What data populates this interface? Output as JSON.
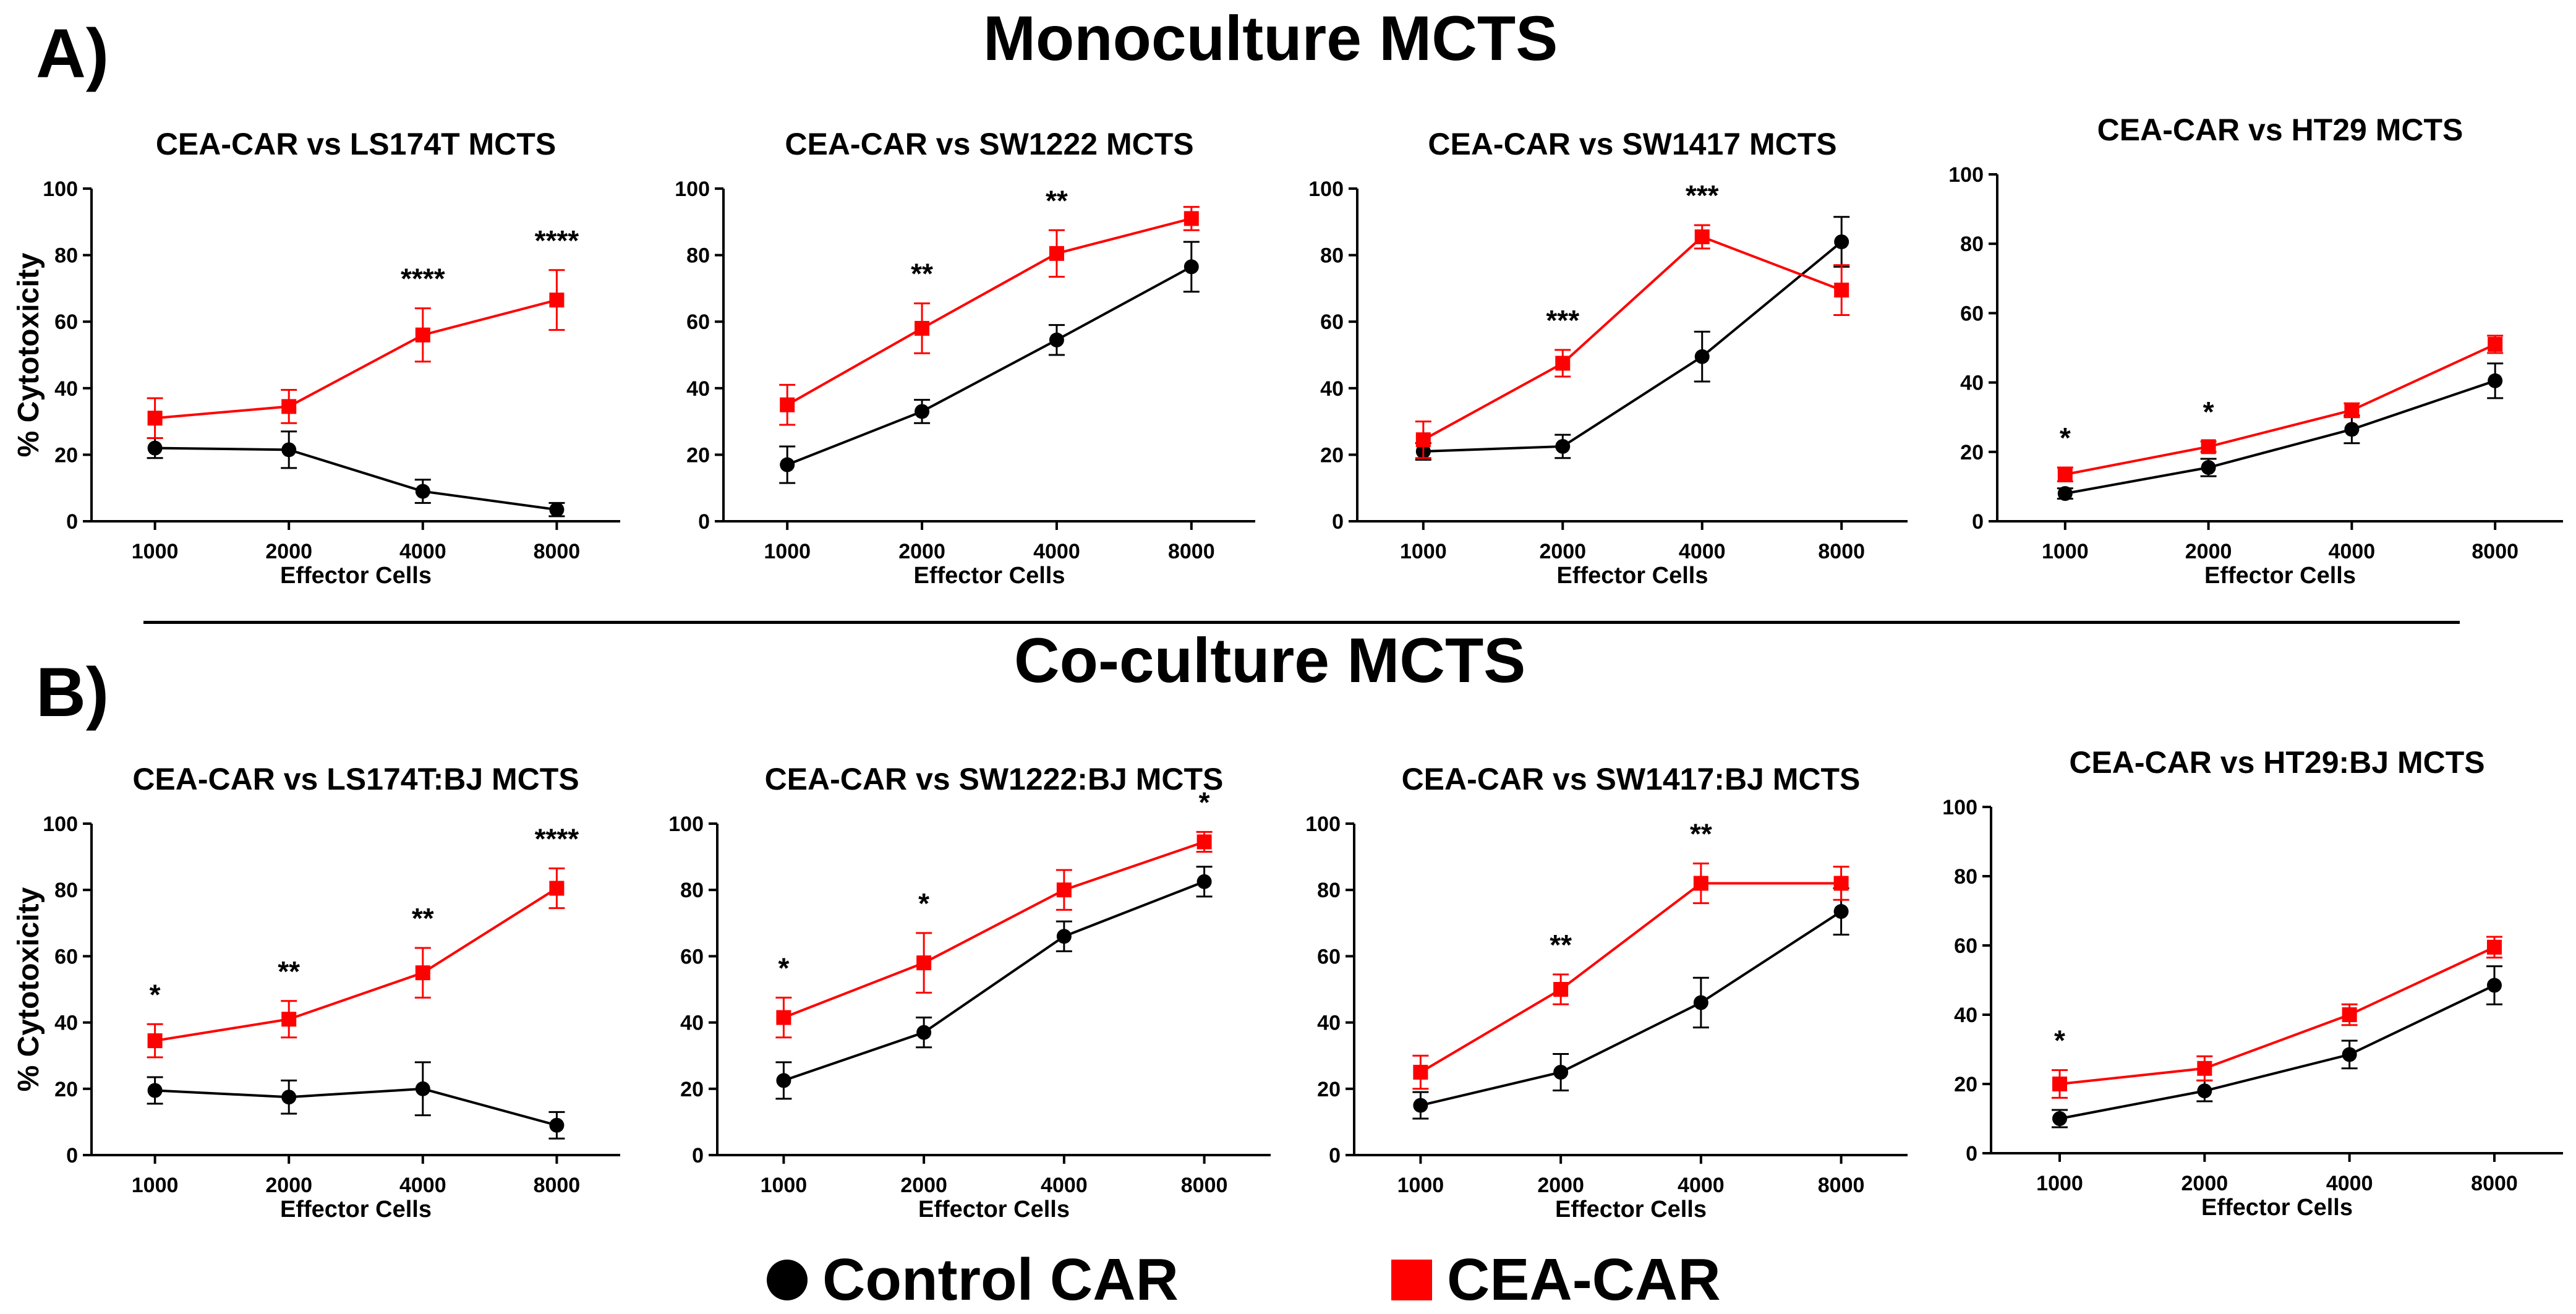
{
  "figure": {
    "section_a_letter": "A)",
    "section_a_title": "Monoculture MCTS",
    "section_b_letter": "B)",
    "section_b_title": "Co-culture MCTS",
    "colors": {
      "control": "#000000",
      "cea": "#ff0000"
    },
    "legend": [
      {
        "label": "Control CAR",
        "marker": "circle",
        "color": "#000000"
      },
      {
        "label": "CEA-CAR",
        "marker": "square",
        "color": "#ff0000"
      }
    ]
  },
  "chart_data": [
    {
      "type": "line",
      "title": "CEA-CAR vs LS174T MCTS",
      "xlabel": "Effector Cells",
      "ylabel": "% Cytotoxicity",
      "categories": [
        "1000",
        "2000",
        "4000",
        "8000"
      ],
      "ylim": [
        0,
        100
      ],
      "yticks": [
        0,
        20,
        40,
        60,
        80,
        100
      ],
      "series": [
        {
          "name": "Control CAR",
          "values": [
            22,
            21.5,
            9,
            3.5
          ],
          "errors": [
            3,
            5.5,
            3.5,
            2
          ]
        },
        {
          "name": "CEA-CAR",
          "values": [
            31,
            34.5,
            56,
            66.5
          ],
          "errors": [
            6,
            5,
            8,
            9
          ]
        }
      ],
      "annotations": [
        "",
        "",
        "****",
        "****"
      ]
    },
    {
      "type": "line",
      "title": "CEA-CAR vs SW1222 MCTS",
      "xlabel": "Effector Cells",
      "ylabel": "",
      "categories": [
        "1000",
        "2000",
        "4000",
        "8000"
      ],
      "ylim": [
        0,
        100
      ],
      "yticks": [
        0,
        20,
        40,
        60,
        80,
        100
      ],
      "series": [
        {
          "name": "Control CAR",
          "values": [
            17,
            33,
            54.5,
            76.5
          ],
          "errors": [
            5.5,
            3.5,
            4.5,
            7.5
          ]
        },
        {
          "name": "CEA-CAR",
          "values": [
            35,
            58,
            80.5,
            91
          ],
          "errors": [
            6,
            7.5,
            7,
            3.5
          ]
        }
      ],
      "annotations": [
        "",
        "**",
        "**",
        ""
      ]
    },
    {
      "type": "line",
      "title": "CEA-CAR vs SW1417 MCTS",
      "xlabel": "Effector Cells",
      "ylabel": "",
      "categories": [
        "1000",
        "2000",
        "4000",
        "8000"
      ],
      "ylim": [
        0,
        100
      ],
      "yticks": [
        0,
        20,
        40,
        60,
        80,
        100
      ],
      "series": [
        {
          "name": "Control CAR",
          "values": [
            21,
            22.5,
            49.5,
            84
          ],
          "errors": [
            2.5,
            3.5,
            7.5,
            7.5
          ]
        },
        {
          "name": "CEA-CAR",
          "values": [
            24.5,
            47.5,
            85.5,
            69.5
          ],
          "errors": [
            5.5,
            4,
            3.5,
            7.5
          ]
        }
      ],
      "annotations": [
        "",
        "***",
        "***",
        ""
      ]
    },
    {
      "type": "line",
      "title": "CEA-CAR vs HT29 MCTS",
      "xlabel": "Effector Cells",
      "ylabel": "",
      "categories": [
        "1000",
        "2000",
        "4000",
        "8000"
      ],
      "ylim": [
        0,
        100
      ],
      "yticks": [
        0,
        20,
        40,
        60,
        80,
        100
      ],
      "series": [
        {
          "name": "Control CAR",
          "values": [
            8,
            15.5,
            26.5,
            40.5
          ],
          "errors": [
            1.5,
            2.5,
            4,
            5
          ]
        },
        {
          "name": "CEA-CAR",
          "values": [
            13.5,
            21.5,
            32,
            51
          ],
          "errors": [
            2,
            1.5,
            2,
            2.5
          ]
        }
      ],
      "annotations": [
        "*",
        "*",
        "",
        ""
      ]
    },
    {
      "type": "line",
      "title": "CEA-CAR vs LS174T:BJ MCTS",
      "xlabel": "Effector Cells",
      "ylabel": "% Cytotoxicity",
      "categories": [
        "1000",
        "2000",
        "4000",
        "8000"
      ],
      "ylim": [
        0,
        100
      ],
      "yticks": [
        0,
        20,
        40,
        60,
        80,
        100
      ],
      "series": [
        {
          "name": "Control CAR",
          "values": [
            19.5,
            17.5,
            20,
            9
          ],
          "errors": [
            4,
            5,
            8,
            4
          ]
        },
        {
          "name": "CEA-CAR",
          "values": [
            34.5,
            41,
            55,
            80.5
          ],
          "errors": [
            5,
            5.5,
            7.5,
            6
          ]
        }
      ],
      "annotations": [
        "*",
        "**",
        "**",
        "****"
      ]
    },
    {
      "type": "line",
      "title": "CEA-CAR vs SW1222:BJ MCTS",
      "xlabel": "Effector Cells",
      "ylabel": "",
      "categories": [
        "1000",
        "2000",
        "4000",
        "8000"
      ],
      "ylim": [
        0,
        100
      ],
      "yticks": [
        0,
        20,
        40,
        60,
        80,
        100
      ],
      "series": [
        {
          "name": "Control CAR",
          "values": [
            22.5,
            37,
            66,
            82.5
          ],
          "errors": [
            5.5,
            4.5,
            4.5,
            4.5
          ]
        },
        {
          "name": "CEA-CAR",
          "values": [
            41.5,
            58,
            80,
            94.5
          ],
          "errors": [
            6,
            9,
            6,
            3
          ]
        }
      ],
      "annotations": [
        "*",
        "*",
        "",
        "*"
      ]
    },
    {
      "type": "line",
      "title": "CEA-CAR vs SW1417:BJ MCTS",
      "xlabel": "Effector Cells",
      "ylabel": "",
      "categories": [
        "1000",
        "2000",
        "4000",
        "8000"
      ],
      "ylim": [
        0,
        100
      ],
      "yticks": [
        0,
        20,
        40,
        60,
        80,
        100
      ],
      "series": [
        {
          "name": "Control CAR",
          "values": [
            15,
            25,
            46,
            73.5
          ],
          "errors": [
            4,
            5.5,
            7.5,
            7
          ]
        },
        {
          "name": "CEA-CAR",
          "values": [
            25,
            50,
            82,
            82
          ],
          "errors": [
            5,
            4.5,
            6,
            5
          ]
        }
      ],
      "annotations": [
        "",
        "**",
        "**",
        ""
      ]
    },
    {
      "type": "line",
      "title": "CEA-CAR vs HT29:BJ MCTS",
      "xlabel": "Effector Cells",
      "ylabel": "",
      "categories": [
        "1000",
        "2000",
        "4000",
        "8000"
      ],
      "ylim": [
        0,
        100
      ],
      "yticks": [
        0,
        20,
        40,
        60,
        80,
        100
      ],
      "series": [
        {
          "name": "Control CAR",
          "values": [
            10,
            18,
            28.5,
            48.5
          ],
          "errors": [
            2.5,
            3,
            4,
            5.5
          ]
        },
        {
          "name": "CEA-CAR",
          "values": [
            20,
            24.5,
            40,
            59.5
          ],
          "errors": [
            4,
            3.5,
            3,
            3
          ]
        }
      ],
      "annotations": [
        "*",
        "",
        "",
        ""
      ]
    }
  ]
}
